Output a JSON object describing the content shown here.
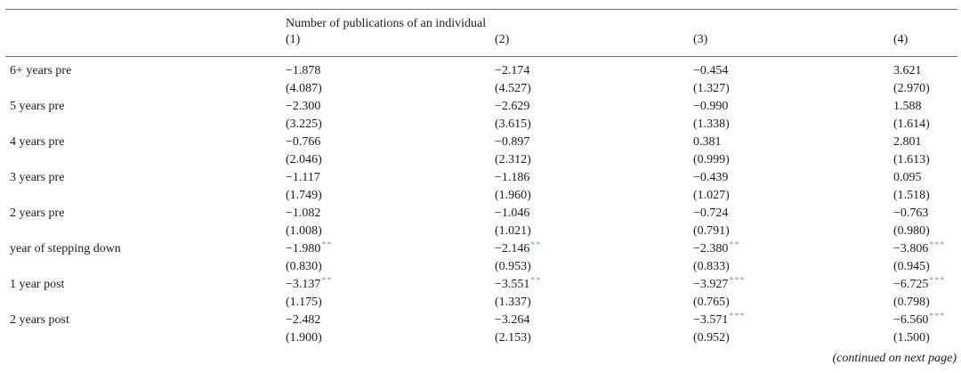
{
  "colors": {
    "background": "#ffffff",
    "text": "#1c1c1c",
    "rule": "#6b6b6b",
    "significance_star": "#6f9ed3"
  },
  "table": {
    "spanner_title": "Number of publications of an individual",
    "column_headers": [
      "(1)",
      "(2)",
      "(3)",
      "(4)"
    ],
    "rows": [
      {
        "label": "6+ years pre",
        "cells": [
          {
            "coef": "−1.878",
            "stars": "",
            "se": "(4.087)"
          },
          {
            "coef": "−2.174",
            "stars": "",
            "se": "(4.527)"
          },
          {
            "coef": "−0.454",
            "stars": "",
            "se": "(1.327)"
          },
          {
            "coef": "3.621",
            "stars": "",
            "se": "(2.970)"
          }
        ]
      },
      {
        "label": "5 years pre",
        "cells": [
          {
            "coef": "−2.300",
            "stars": "",
            "se": "(3.225)"
          },
          {
            "coef": "−2.629",
            "stars": "",
            "se": "(3.615)"
          },
          {
            "coef": "−0.990",
            "stars": "",
            "se": "(1.338)"
          },
          {
            "coef": "1.588",
            "stars": "",
            "se": "(1.614)"
          }
        ]
      },
      {
        "label": "4 years pre",
        "cells": [
          {
            "coef": "−0.766",
            "stars": "",
            "se": "(2.046)"
          },
          {
            "coef": "−0.897",
            "stars": "",
            "se": "(2.312)"
          },
          {
            "coef": "0.381",
            "stars": "",
            "se": "(0.999)"
          },
          {
            "coef": "2.801",
            "stars": "",
            "se": "(1.613)"
          }
        ]
      },
      {
        "label": "3 years pre",
        "cells": [
          {
            "coef": "−1.117",
            "stars": "",
            "se": "(1.749)"
          },
          {
            "coef": "−1.186",
            "stars": "",
            "se": "(1.960)"
          },
          {
            "coef": "−0.439",
            "stars": "",
            "se": "(1.027)"
          },
          {
            "coef": "0.095",
            "stars": "",
            "se": "(1.518)"
          }
        ]
      },
      {
        "label": "2 years pre",
        "cells": [
          {
            "coef": "−1.082",
            "stars": "",
            "se": "(1.008)"
          },
          {
            "coef": "−1.046",
            "stars": "",
            "se": "(1.021)"
          },
          {
            "coef": "−0.724",
            "stars": "",
            "se": "(0.791)"
          },
          {
            "coef": "−0.763",
            "stars": "",
            "se": "(0.980)"
          }
        ]
      },
      {
        "label": "year of stepping down",
        "cells": [
          {
            "coef": "−1.980",
            "stars": "**",
            "se": "(0.830)"
          },
          {
            "coef": "−2.146",
            "stars": "**",
            "se": "(0.953)"
          },
          {
            "coef": "−2.380",
            "stars": "**",
            "se": "(0.833)"
          },
          {
            "coef": "−3.806",
            "stars": "***",
            "se": "(0.945)"
          }
        ]
      },
      {
        "label": "1 year post",
        "cells": [
          {
            "coef": "−3.137",
            "stars": "**",
            "se": "(1.175)"
          },
          {
            "coef": "−3.551",
            "stars": "**",
            "se": "(1.337)"
          },
          {
            "coef": "−3.927",
            "stars": "***",
            "se": "(0.765)"
          },
          {
            "coef": "−6.725",
            "stars": "***",
            "se": "(0.798)"
          }
        ]
      },
      {
        "label": "2 years post",
        "cells": [
          {
            "coef": "−2.482",
            "stars": "",
            "se": "(1.900)"
          },
          {
            "coef": "−3.264",
            "stars": "",
            "se": "(2.153)"
          },
          {
            "coef": "−3.571",
            "stars": "***",
            "se": "(0.952)"
          },
          {
            "coef": "−6.560",
            "stars": "***",
            "se": "(1.500)"
          }
        ]
      }
    ]
  },
  "footer": {
    "continued_note": "(continued on next page)"
  }
}
